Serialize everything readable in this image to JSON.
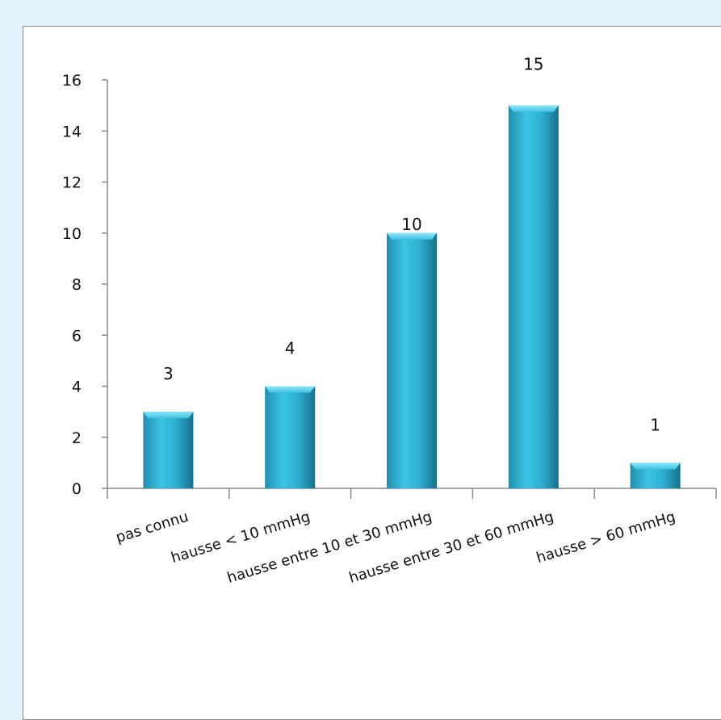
{
  "chart_data": {
    "type": "bar",
    "title": "",
    "xlabel": "",
    "ylabel": "",
    "categories": [
      "pas connu",
      "hausse < 10 mmHg",
      "hausse entre 10 et 30 mmHg",
      "hausse entre 30 et 60 mmHg",
      "hausse > 60 mmHg"
    ],
    "values": [
      3,
      4,
      10,
      15,
      1
    ],
    "data_labels": [
      "3",
      "4",
      "10",
      "15",
      "1"
    ],
    "ylim": [
      0,
      16
    ],
    "yticks": [
      0,
      2,
      4,
      6,
      8,
      10,
      12,
      14,
      16
    ],
    "ytick_labels": [
      "0",
      "2",
      "4",
      "6",
      "8",
      "10",
      "12",
      "14",
      "16"
    ],
    "grid": false,
    "legend": "none",
    "colors": {
      "bar_light": "#5fd2ee",
      "bar_mid": "#2fb3d6",
      "bar_dark": "#1a7f9c",
      "axis": "#8a8a8a",
      "background": "#e3f1fb"
    }
  }
}
